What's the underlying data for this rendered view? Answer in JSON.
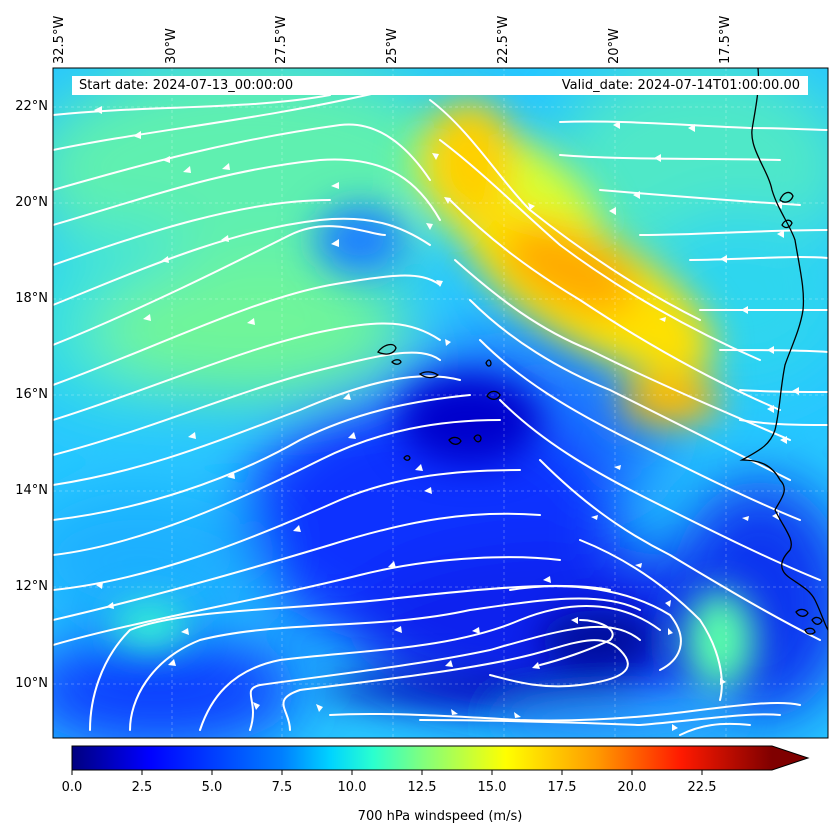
{
  "header": {
    "start_date": "Start date: 2024-07-13_00:00:00",
    "valid_date": "Valid_date: 2024-07-14T01:00:00.00"
  },
  "axes": {
    "lon_labels": [
      "32.5°W",
      "30°W",
      "27.5°W",
      "25°W",
      "22.5°W",
      "20°W",
      "17.5°W"
    ],
    "lat_labels": [
      "22°N",
      "20°N",
      "18°N",
      "16°N",
      "14°N",
      "12°N",
      "10°N"
    ]
  },
  "colorbar": {
    "ticks": [
      "0.0",
      "2.5",
      "5.0",
      "7.5",
      "10.0",
      "12.5",
      "15.0",
      "17.5",
      "20.0",
      "22.5"
    ],
    "label": "700 hPa windspeed (m/s)",
    "min": 0,
    "max": 25,
    "extend": "max",
    "colormap": [
      "#00007f",
      "#0000ff",
      "#007fff",
      "#00ffff",
      "#7fff7f",
      "#ffff00",
      "#ff7f00",
      "#ff0000",
      "#7f0000"
    ]
  },
  "map": {
    "lon_range": [
      -32.5,
      -15.0
    ],
    "lat_range": [
      9.0,
      22.8
    ],
    "field": "700 hPa windspeed",
    "streamline_color": "#ffffff",
    "coastline_color": "#000000"
  }
}
